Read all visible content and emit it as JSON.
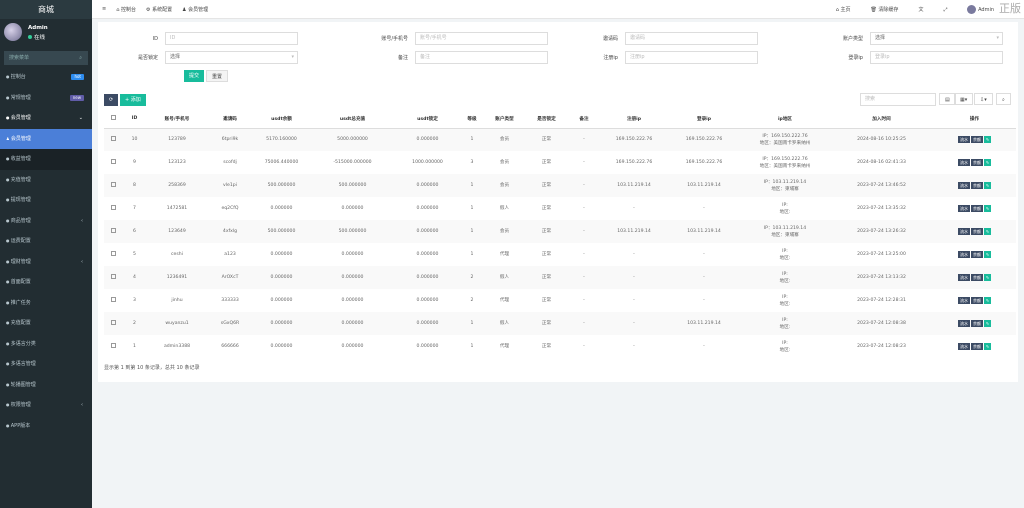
{
  "sidebar": {
    "logo": "商城",
    "user": "Admin",
    "status": "在线",
    "search_placeholder": "搜索菜单",
    "items": [
      {
        "label": "控制台",
        "badge": "hot",
        "badge_color": "#2d8cf0"
      },
      {
        "label": "常规管理",
        "badge": "new",
        "badge_color": "#605ca8"
      },
      {
        "label": "会员管理",
        "chevron": "⌄"
      },
      {
        "label": "会员管理"
      },
      {
        "label": "收益管理"
      },
      {
        "label": "充值管理"
      },
      {
        "label": "提现管理"
      },
      {
        "label": "商品管理",
        "chevron": "‹"
      },
      {
        "label": "运费配置"
      },
      {
        "label": "理财管理",
        "chevron": "‹"
      },
      {
        "label": "首面配置"
      },
      {
        "label": "推广任务"
      },
      {
        "label": "充值配置"
      },
      {
        "label": "多语言分类"
      },
      {
        "label": "多语言管理"
      },
      {
        "label": "轮播图管理"
      },
      {
        "label": "权限管理",
        "chevron": "‹"
      },
      {
        "label": "APP版本"
      }
    ]
  },
  "topbar": {
    "tabs": [
      "控制台",
      "系统配置",
      "会员管理"
    ],
    "home": "主页",
    "clear_cache": "清除缓存",
    "admin": "Admin",
    "watermark": "正版"
  },
  "filters": {
    "id_label": "ID",
    "id_placeholder": "ID",
    "account_label": "账号/手机号",
    "account_placeholder": "账号/手机号",
    "invite_label": "邀请码",
    "invite_placeholder": "邀请码",
    "type_label": "账户类型",
    "type_value": "选择",
    "locked_label": "是否锁定",
    "locked_value": "选择",
    "remark_label": "备注",
    "remark_placeholder": "备注",
    "regip_label": "注册ip",
    "regip_placeholder": "注册ip",
    "loginip_label": "登录ip",
    "loginip_placeholder": "登录ip",
    "submit": "提交",
    "reset": "重置"
  },
  "toolbar": {
    "add": "+ 添加",
    "search_placeholder": "搜索"
  },
  "table": {
    "headers": [
      "ID",
      "账号/手机号",
      "邀请码",
      "usdt余额",
      "usdt总充值",
      "usdt锁定",
      "等级",
      "账户类型",
      "是否锁定",
      "备注",
      "注册ip",
      "登录ip",
      "ip地区",
      "加入时间",
      "操作"
    ],
    "action_labels": [
      "流水",
      "余额"
    ],
    "rows": [
      [
        "10",
        "123789",
        "6tpri9k",
        "5170.160000",
        "5000.000000",
        "0.000000",
        "1",
        "会员",
        "正常",
        "-",
        "169.150.222.76",
        "169.150.222.76",
        "IP：169.150.222.76",
        "地区：美国南卡罗来纳州",
        "2024-08-16 10:25:25"
      ],
      [
        "9",
        "123123",
        "scofdj",
        "75006.440000",
        "-515000.000000",
        "1000.000000",
        "3",
        "会员",
        "正常",
        "-",
        "169.150.222.76",
        "169.150.222.76",
        "IP：169.150.222.76",
        "地区：美国南卡罗来纳州",
        "2024-08-16 02:41:33"
      ],
      [
        "8",
        "258369",
        "vle1pi",
        "500.000000",
        "500.000000",
        "0.000000",
        "1",
        "会员",
        "正常",
        "-",
        "103.11.219.14",
        "103.11.219.14",
        "IP：103.11.219.14",
        "地区：柬埔寨",
        "2023-07-24 13:46:52"
      ],
      [
        "7",
        "1472581",
        "eq2CfQ",
        "0.000000",
        "0.000000",
        "0.000000",
        "1",
        "假人",
        "正常",
        "-",
        "-",
        "-",
        "IP:",
        "地区:",
        "2023-07-24 13:35:32"
      ],
      [
        "6",
        "123649",
        "4xfxlg",
        "500.000000",
        "500.000000",
        "0.000000",
        "1",
        "会员",
        "正常",
        "-",
        "103.11.219.14",
        "103.11.219.14",
        "IP：103.11.219.14",
        "地区：柬埔寨",
        "2023-07-24 13:26:32"
      ],
      [
        "5",
        "ceshi",
        "a123",
        "0.000000",
        "0.000000",
        "0.000000",
        "1",
        "代理",
        "正常",
        "-",
        "-",
        "-",
        "IP:",
        "地区:",
        "2023-07-24 13:25:00"
      ],
      [
        "4",
        "1236491",
        "ArOXcT",
        "0.000000",
        "0.000000",
        "0.000000",
        "2",
        "假人",
        "正常",
        "-",
        "-",
        "-",
        "IP:",
        "地区:",
        "2023-07-24 13:13:32"
      ],
      [
        "3",
        "jinhu",
        "333333",
        "0.000000",
        "0.000000",
        "0.000000",
        "2",
        "代理",
        "正常",
        "-",
        "-",
        "-",
        "IP:",
        "地区:",
        "2023-07-24 12:28:31"
      ],
      [
        "2",
        "wuyanzu1",
        "sGxQ6R",
        "0.000000",
        "0.000000",
        "0.000000",
        "1",
        "假人",
        "正常",
        "-",
        "-",
        "103.11.219.14",
        "IP:",
        "地区:",
        "2023-07-24 12:08:38"
      ],
      [
        "1",
        "admin3388",
        "666666",
        "0.000000",
        "0.000000",
        "0.000000",
        "1",
        "代理",
        "正常",
        "-",
        "-",
        "-",
        "IP:",
        "地区:",
        "2023-07-24 12:08:23"
      ]
    ]
  },
  "footer": "显示第 1 到第 10 条记录，总共 10 条记录"
}
